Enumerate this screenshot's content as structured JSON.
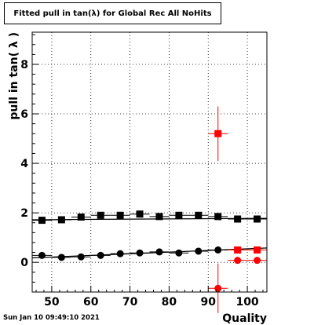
{
  "title": "Fitted pull in tan(λ) for Global Rec All NoHits",
  "timestamp": "Sun Jan 10 09:49:10 2021",
  "chart_data": {
    "type": "scatter",
    "title": "Fitted pull in tan(λ) for Global Rec All NoHits",
    "xlabel": "Quality",
    "ylabel": "pull in tan( λ )",
    "xlim": [
      45,
      105
    ],
    "ylim": [
      -1.2,
      9.3
    ],
    "xticks": [
      50,
      60,
      70,
      80,
      90,
      100
    ],
    "yticks": [
      0,
      2,
      4,
      6,
      8
    ],
    "grid": true,
    "series": [
      {
        "marker": "square",
        "color": "#000000",
        "x": [
          47.5,
          52.5,
          57.5,
          62.5,
          67.5,
          72.5,
          77.5,
          82.5,
          87.5,
          92.5,
          97.5,
          102.5
        ],
        "y": [
          1.7,
          1.72,
          1.83,
          1.9,
          1.9,
          1.95,
          1.85,
          1.9,
          1.9,
          1.85,
          1.75,
          1.75
        ],
        "yerr": [
          0.08,
          0.06,
          0.06,
          0.06,
          0.06,
          0.06,
          0.06,
          0.06,
          0.06,
          0.07,
          0.07,
          0.06
        ],
        "fit": [
          [
            45,
            1.72
          ],
          [
            105,
            1.78
          ]
        ]
      },
      {
        "marker": "circle",
        "color": "#000000",
        "x": [
          47.5,
          52.5,
          57.5,
          62.5,
          67.5,
          72.5,
          77.5,
          82.5,
          87.5,
          92.5
        ],
        "y": [
          0.28,
          0.2,
          0.22,
          0.28,
          0.35,
          0.38,
          0.42,
          0.38,
          0.45,
          0.5
        ],
        "yerr": [
          0.06,
          0.05,
          0.05,
          0.05,
          0.05,
          0.05,
          0.05,
          0.05,
          0.05,
          0.05
        ],
        "fit": [
          [
            45,
            0.18
          ],
          [
            105,
            0.58
          ]
        ]
      },
      {
        "marker": "square",
        "color": "#ff0000",
        "x": [
          92.5,
          97.5,
          102.5
        ],
        "y": [
          5.2,
          0.5,
          0.5
        ],
        "yerr": [
          1.1,
          0.06,
          0.06
        ]
      },
      {
        "marker": "circle",
        "color": "#ff0000",
        "x": [
          92.5,
          97.5,
          102.5
        ],
        "y": [
          -1.05,
          0.08,
          0.08
        ],
        "yerr": [
          1.0,
          0.06,
          0.06
        ]
      }
    ]
  }
}
